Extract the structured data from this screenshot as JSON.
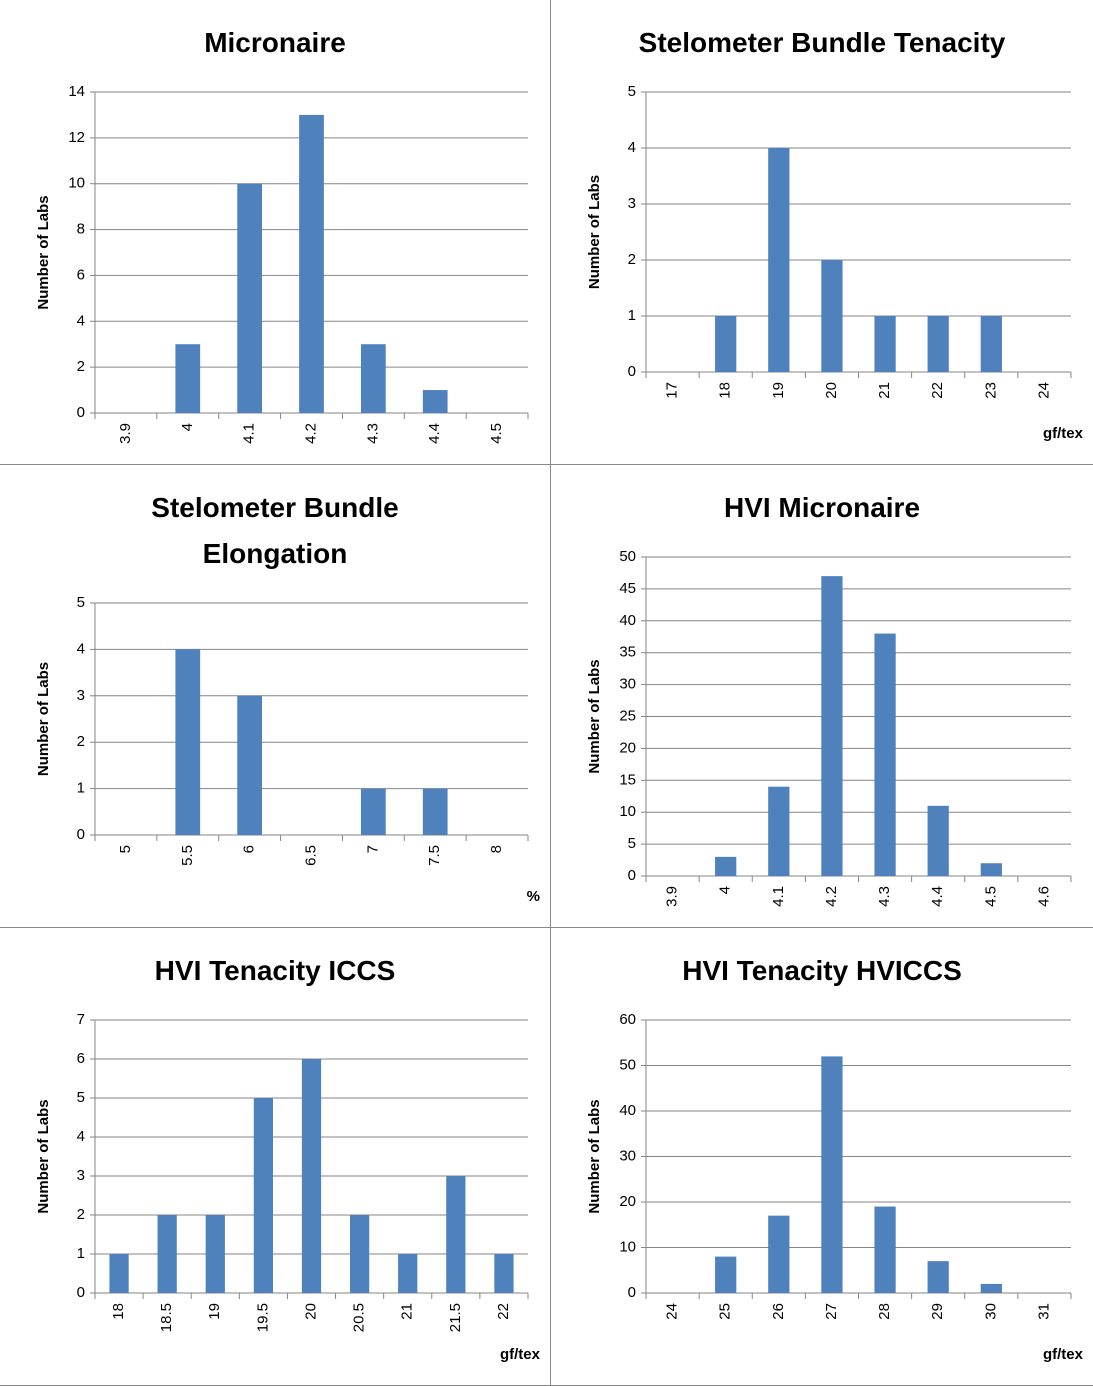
{
  "chart_data": [
    {
      "type": "bar",
      "title": "Micronaire",
      "y_label": "Number of Labs",
      "color": "#4f81bd",
      "grid": true,
      "categories": [
        "3.9",
        "4",
        "4.1",
        "4.2",
        "4.3",
        "4.4",
        "4.5"
      ],
      "values": [
        0,
        3,
        10,
        13,
        3,
        1,
        0
      ],
      "ylim": [
        0,
        14
      ],
      "yticks": [
        0,
        2,
        4,
        6,
        8,
        10,
        12,
        14
      ]
    },
    {
      "type": "bar",
      "title": "Stelometer Bundle Tenacity",
      "y_label": "Number of Labs",
      "x_label": "gf/tex",
      "color": "#4f81bd",
      "grid": true,
      "categories": [
        "17",
        "18",
        "19",
        "20",
        "21",
        "22",
        "23",
        "24"
      ],
      "values": [
        0,
        1,
        4,
        2,
        1,
        1,
        1,
        0
      ],
      "ylim": [
        0,
        5
      ],
      "yticks": [
        0,
        1,
        2,
        3,
        4,
        5
      ]
    },
    {
      "type": "bar",
      "title": "Stelometer Bundle Elongation",
      "y_label": "Number of Labs",
      "x_label": "%",
      "color": "#4f81bd",
      "grid": true,
      "categories": [
        "5",
        "5.5",
        "6",
        "6.5",
        "7",
        "7.5",
        "8"
      ],
      "values": [
        0,
        4,
        3,
        0,
        1,
        1,
        0
      ],
      "ylim": [
        0,
        5
      ],
      "yticks": [
        0,
        1,
        2,
        3,
        4,
        5
      ]
    },
    {
      "type": "bar",
      "title": "HVI Micronaire",
      "y_label": "Number of Labs",
      "color": "#4f81bd",
      "grid": true,
      "categories": [
        "3.9",
        "4",
        "4.1",
        "4.2",
        "4.3",
        "4.4",
        "4.5",
        "4.6"
      ],
      "values": [
        0,
        3,
        14,
        47,
        38,
        11,
        2,
        0
      ],
      "ylim": [
        0,
        50
      ],
      "yticks": [
        0,
        5,
        10,
        15,
        20,
        25,
        30,
        35,
        40,
        45,
        50
      ]
    },
    {
      "type": "bar",
      "title": "HVI Tenacity ICCS",
      "y_label": "Number of Labs",
      "x_label": "gf/tex",
      "color": "#4f81bd",
      "grid": true,
      "categories": [
        "18",
        "18.5",
        "19",
        "19.5",
        "20",
        "20.5",
        "21",
        "21.5",
        "22"
      ],
      "values": [
        1,
        2,
        2,
        5,
        6,
        2,
        1,
        3,
        1
      ],
      "ylim": [
        0,
        7
      ],
      "yticks": [
        0,
        1,
        2,
        3,
        4,
        5,
        6,
        7
      ]
    },
    {
      "type": "bar",
      "title": "HVI Tenacity HVICCS",
      "y_label": "Number of Labs",
      "x_label": "gf/tex",
      "color": "#4f81bd",
      "grid": true,
      "categories": [
        "24",
        "25",
        "26",
        "27",
        "28",
        "29",
        "30",
        "31"
      ],
      "values": [
        0,
        8,
        17,
        52,
        19,
        7,
        2,
        0
      ],
      "ylim": [
        0,
        60
      ],
      "yticks": [
        0,
        10,
        20,
        30,
        40,
        50,
        60
      ]
    }
  ]
}
